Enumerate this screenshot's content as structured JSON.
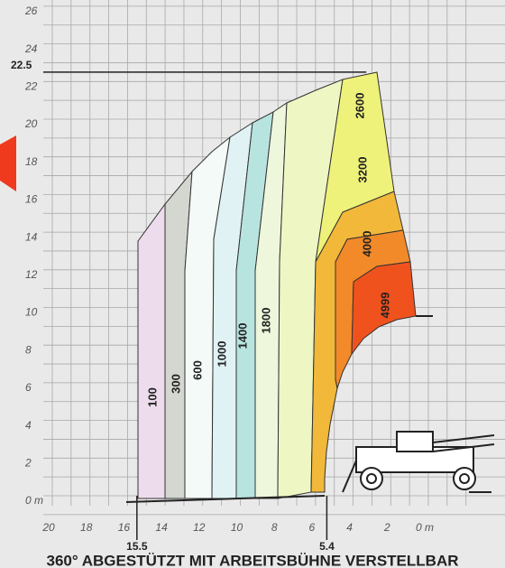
{
  "y_axis": {
    "ticks": [
      {
        "value": 0,
        "label": "0 m"
      },
      2,
      4,
      6,
      8,
      10,
      12,
      14,
      16,
      18,
      20,
      22,
      24,
      26
    ]
  },
  "x_axis": {
    "ticks": [
      20,
      18,
      16,
      14,
      12,
      10,
      8,
      6,
      4,
      2,
      {
        "value": 0,
        "label": "0 m"
      }
    ]
  },
  "markers": {
    "max_height": 22.5,
    "max_outreach": 15.5,
    "min_radius": 5.4
  },
  "zones": [
    100,
    300,
    600,
    1000,
    1400,
    1800,
    2600,
    3200,
    4000,
    4999
  ],
  "title": "360° ABGESTÜTZT MIT ARBEITSBÜHNE VERSTELLBAR"
}
